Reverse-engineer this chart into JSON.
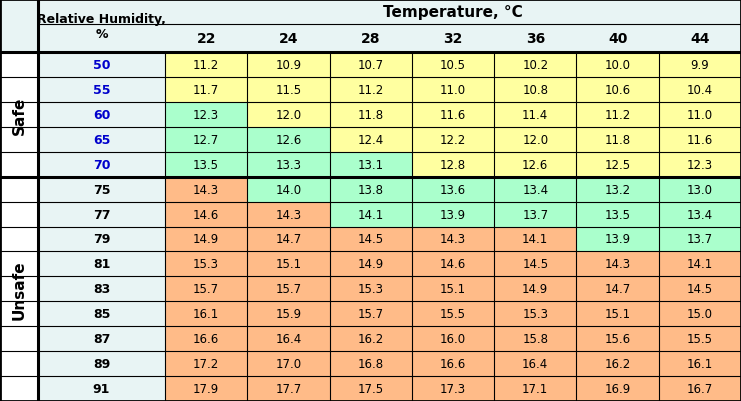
{
  "title_top": "Temperature, °C",
  "col_header_rh": "Relative Humidity,\n%",
  "temperatures": [
    "22",
    "24",
    "28",
    "32",
    "36",
    "40",
    "44"
  ],
  "humidity_rows": [
    50,
    55,
    60,
    65,
    70,
    75,
    77,
    79,
    81,
    83,
    85,
    87,
    89,
    91
  ],
  "safe_label": "Safe",
  "unsafe_label": "Unsafe",
  "data": [
    [
      11.2,
      10.9,
      10.7,
      10.5,
      10.2,
      10.0,
      9.9
    ],
    [
      11.7,
      11.5,
      11.2,
      11.0,
      10.8,
      10.6,
      10.4
    ],
    [
      12.3,
      12.0,
      11.8,
      11.6,
      11.4,
      11.2,
      11.0
    ],
    [
      12.7,
      12.6,
      12.4,
      12.2,
      12.0,
      11.8,
      11.6
    ],
    [
      13.5,
      13.3,
      13.1,
      12.8,
      12.6,
      12.5,
      12.3
    ],
    [
      14.3,
      14.0,
      13.8,
      13.6,
      13.4,
      13.2,
      13.0
    ],
    [
      14.6,
      14.3,
      14.1,
      13.9,
      13.7,
      13.5,
      13.4
    ],
    [
      14.9,
      14.7,
      14.5,
      14.3,
      14.1,
      13.9,
      13.7
    ],
    [
      15.3,
      15.1,
      14.9,
      14.6,
      14.5,
      14.3,
      14.1
    ],
    [
      15.7,
      15.7,
      15.3,
      15.1,
      14.9,
      14.7,
      14.5
    ],
    [
      16.1,
      15.9,
      15.7,
      15.5,
      15.3,
      15.1,
      15.0
    ],
    [
      16.6,
      16.4,
      16.2,
      16.0,
      15.8,
      15.6,
      15.5
    ],
    [
      17.2,
      17.0,
      16.8,
      16.6,
      16.4,
      16.2,
      16.1
    ],
    [
      17.9,
      17.7,
      17.5,
      17.3,
      17.1,
      16.9,
      16.7
    ]
  ],
  "cell_colors": [
    [
      "#FFFFA0",
      "#FFFFA0",
      "#FFFFA0",
      "#FFFFA0",
      "#FFFFA0",
      "#FFFFA0",
      "#FFFFA0"
    ],
    [
      "#FFFFA0",
      "#FFFFA0",
      "#FFFFA0",
      "#FFFFA0",
      "#FFFFA0",
      "#FFFFA0",
      "#FFFFA0"
    ],
    [
      "#AAFFCC",
      "#FFFFA0",
      "#FFFFA0",
      "#FFFFA0",
      "#FFFFA0",
      "#FFFFA0",
      "#FFFFA0"
    ],
    [
      "#AAFFCC",
      "#AAFFCC",
      "#FFFFA0",
      "#FFFFA0",
      "#FFFFA0",
      "#FFFFA0",
      "#FFFFA0"
    ],
    [
      "#AAFFCC",
      "#AAFFCC",
      "#AAFFCC",
      "#FFFFA0",
      "#FFFFA0",
      "#FFFFA0",
      "#FFFFA0"
    ],
    [
      "#FFBB88",
      "#AAFFCC",
      "#AAFFCC",
      "#AAFFCC",
      "#AAFFCC",
      "#AAFFCC",
      "#AAFFCC"
    ],
    [
      "#FFBB88",
      "#FFBB88",
      "#AAFFCC",
      "#AAFFCC",
      "#AAFFCC",
      "#AAFFCC",
      "#AAFFCC"
    ],
    [
      "#FFBB88",
      "#FFBB88",
      "#FFBB88",
      "#FFBB88",
      "#FFBB88",
      "#AAFFCC",
      "#AAFFCC"
    ],
    [
      "#FFBB88",
      "#FFBB88",
      "#FFBB88",
      "#FFBB88",
      "#FFBB88",
      "#FFBB88",
      "#FFBB88"
    ],
    [
      "#FFBB88",
      "#FFBB88",
      "#FFBB88",
      "#FFBB88",
      "#FFBB88",
      "#FFBB88",
      "#FFBB88"
    ],
    [
      "#FFBB88",
      "#FFBB88",
      "#FFBB88",
      "#FFBB88",
      "#FFBB88",
      "#FFBB88",
      "#FFBB88"
    ],
    [
      "#FFBB88",
      "#FFBB88",
      "#FFBB88",
      "#FFBB88",
      "#FFBB88",
      "#FFBB88",
      "#FFBB88"
    ],
    [
      "#FFBB88",
      "#FFBB88",
      "#FFBB88",
      "#FFBB88",
      "#FFBB88",
      "#FFBB88",
      "#FFBB88"
    ],
    [
      "#FFBB88",
      "#FFBB88",
      "#FFBB88",
      "#FFBB88",
      "#FFBB88",
      "#FFBB88",
      "#FFBB88"
    ]
  ],
  "header_bg": "#E8F4F4",
  "rh_col_bg": "#E8F4F4",
  "side_col_bg": "#FFFFFF",
  "border_color": "#000000",
  "rh_font_color_safe": "#0000CC",
  "rh_font_color_unsafe": "#000000",
  "safe_rows_count": 5,
  "figsize": [
    7.41,
    4.02
  ],
  "dpi": 100
}
